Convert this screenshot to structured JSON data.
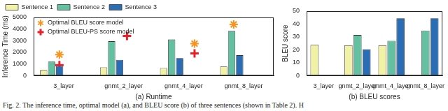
{
  "caption": "Fig. 2. The inference time, optimal model (a), and BLEU score (b) of three sentences (shown in Table 2). H",
  "chart_data": [
    {
      "type": "bar",
      "x_label": "(a) Runtime",
      "y_label": "Inference Time (ms)",
      "categories": [
        "3_layer",
        "gnmt_2_layer",
        "gnmt_4_layer",
        "gnmt_8_layer"
      ],
      "series": [
        {
          "name": "Sentence 1",
          "color": "#f2f2a6",
          "values": [
            480,
            700,
            650,
            780
          ]
        },
        {
          "name": "Sentence 2",
          "color": "#63c0a0",
          "values": [
            1200,
            2950,
            3100,
            3850
          ]
        },
        {
          "name": "Sentence 3",
          "color": "#2a6db5",
          "values": [
            820,
            1350,
            1500,
            1750
          ]
        }
      ],
      "markers": [
        {
          "name": "Optimal BLEU score model",
          "color": "#f7931e",
          "marker": "asterisk",
          "points": [
            {
              "category": "3_layer",
              "series": "Sentence 1",
              "value": 1800
            },
            {
              "category": "gnmt_4_layer",
              "series": "Sentence 3",
              "value": 2750
            },
            {
              "category": "gnmt_8_layer",
              "series": "Sentence 2",
              "value": 4400
            }
          ]
        },
        {
          "name": "Optimal BLEU-PS score model",
          "color": "#e8202a",
          "marker": "plus",
          "points": [
            {
              "category": "3_layer",
              "series": "Sentence 1",
              "value": 900
            },
            {
              "category": "gnmt_2_layer",
              "series": "Sentence 2",
              "value": 3400
            },
            {
              "category": "gnmt_4_layer",
              "series": "Sentence 3",
              "value": 1900
            }
          ]
        }
      ],
      "ylim": [
        0,
        5000
      ],
      "yticks": [
        0,
        1000,
        2000,
        3000,
        4000,
        5000
      ],
      "grid": false,
      "legend": "top"
    },
    {
      "type": "bar",
      "x_label": "(b) BLEU scores",
      "y_label": "BLEU score",
      "categories": [
        "3_layer",
        "gnmt_2_layer",
        "gnmt_4_layer",
        "gnmt_8_layer"
      ],
      "series": [
        {
          "name": "Sentence 1",
          "color": "#f2f2a6",
          "values": [
            24,
            23.5,
            23.5,
            null
          ]
        },
        {
          "name": "Sentence 2",
          "color": "#63c0a0",
          "values": [
            null,
            31.5,
            27,
            35
          ]
        },
        {
          "name": "Sentence 3",
          "color": "#2a6db5",
          "values": [
            null,
            20.5,
            44.5,
            44.5
          ]
        }
      ],
      "ylim": [
        0,
        50
      ],
      "yticks": [
        0,
        10,
        20,
        30,
        40,
        50
      ],
      "grid": false
    }
  ]
}
